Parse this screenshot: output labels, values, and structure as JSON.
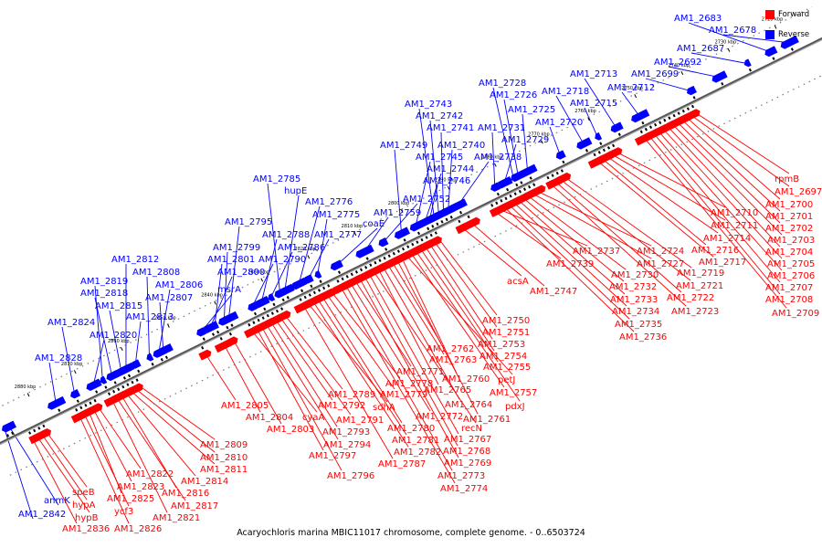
{
  "legend": {
    "forward": {
      "label": "Forward",
      "color": "#ff0000"
    },
    "reverse": {
      "label": "Reverse",
      "color": "#0000ff"
    }
  },
  "caption": "Acaryochloris marina MBIC11017 chromosome, complete genome. - 0..6503724",
  "axis": {
    "ticks": [
      "2880 kbp",
      "2870 kbp",
      "2860 kbp",
      "2850 kbp",
      "2840 kbp",
      "2830 kbp",
      "2820 kbp",
      "2810 kbp",
      "2800 kbp",
      "2790 kbp",
      "2780 kbp",
      "2770 kbp",
      "2760 kbp",
      "2750 kbp",
      "2740 kbp",
      "2730 kbp",
      "2720 kbp"
    ]
  },
  "reverse_genes": [
    {
      "label": "AM1_2842",
      "kb": 2887
    },
    {
      "label": "anmK",
      "kb": 2886
    },
    {
      "label": "AM1_2828",
      "kb": 2876
    },
    {
      "label": "AM1_2824",
      "kb": 2872
    },
    {
      "label": "AM1_2820",
      "kb": 2868
    },
    {
      "label": "AM1_2819",
      "kb": 2866
    },
    {
      "label": "AM1_2818",
      "kb": 2864
    },
    {
      "label": "AM1_2815",
      "kb": 2862
    },
    {
      "label": "AM1_2813",
      "kb": 2859
    },
    {
      "label": "AM1_2812",
      "kb": 2861
    },
    {
      "label": "AM1_2808",
      "kb": 2856
    },
    {
      "label": "AM1_2806",
      "kb": 2854
    },
    {
      "label": "AM1_2807",
      "kb": 2853
    },
    {
      "label": "msrA",
      "kb": 2845
    },
    {
      "label": "AM1_2800",
      "kb": 2843
    },
    {
      "label": "AM1_2801",
      "kb": 2842
    },
    {
      "label": "AM1_2799",
      "kb": 2840
    },
    {
      "label": "AM1_2795",
      "kb": 2839
    },
    {
      "label": "AM1_2790",
      "kb": 2834
    },
    {
      "label": "AM1_2788",
      "kb": 2832
    },
    {
      "label": "AM1_2786",
      "kb": 2830
    },
    {
      "label": "AM1_2785",
      "kb": 2828
    },
    {
      "label": "hupE",
      "kb": 2827
    },
    {
      "label": "AM1_2777",
      "kb": 2822
    },
    {
      "label": "AM1_2776",
      "kb": 2824
    },
    {
      "label": "AM1_2775",
      "kb": 2820
    },
    {
      "label": "coaE",
      "kb": 2816
    },
    {
      "label": "AM1_2759",
      "kb": 2810
    },
    {
      "label": "AM1_2752",
      "kb": 2806
    },
    {
      "label": "AM1_2749",
      "kb": 2802
    },
    {
      "label": "AM1_2746",
      "kb": 2796
    },
    {
      "label": "AM1_2745",
      "kb": 2799
    },
    {
      "label": "AM1_2744",
      "kb": 2797
    },
    {
      "label": "AM1_2743",
      "kb": 2795
    },
    {
      "label": "AM1_2742",
      "kb": 2794
    },
    {
      "label": "AM1_2741",
      "kb": 2793
    },
    {
      "label": "AM1_2740",
      "kb": 2792
    },
    {
      "label": "AM1_2738",
      "kb": 2790
    },
    {
      "label": "AM1_2731",
      "kb": 2782
    },
    {
      "label": "AM1_2729",
      "kb": 2780
    },
    {
      "label": "AM1_2728",
      "kb": 2778
    },
    {
      "label": "AM1_2726",
      "kb": 2777
    },
    {
      "label": "AM1_2725",
      "kb": 2775
    },
    {
      "label": "AM1_2720",
      "kb": 2768
    },
    {
      "label": "AM1_2718",
      "kb": 2763
    },
    {
      "label": "AM1_2715",
      "kb": 2760
    },
    {
      "label": "AM1_2713",
      "kb": 2756
    },
    {
      "label": "AM1_2712",
      "kb": 2751
    },
    {
      "label": "AM1_2699",
      "kb": 2740
    },
    {
      "label": "AM1_2692",
      "kb": 2734
    },
    {
      "label": "AM1_2687",
      "kb": 2728
    },
    {
      "label": "AM1_2683",
      "kb": 2723
    },
    {
      "label": "AM1_2678",
      "kb": 2719
    }
  ],
  "forward_genes": [
    {
      "label": "AM1_2836",
      "kb": 2883
    },
    {
      "label": "hypB",
      "kb": 2882
    },
    {
      "label": "hypA",
      "kb": 2881
    },
    {
      "label": "speB",
      "kb": 2880
    },
    {
      "label": "AM1_2826",
      "kb": 2873
    },
    {
      "label": "ycf3",
      "kb": 2872
    },
    {
      "label": "AM1_2825",
      "kb": 2871
    },
    {
      "label": "AM1_2823",
      "kb": 2870
    },
    {
      "label": "AM1_2822",
      "kb": 2869
    },
    {
      "label": "AM1_2821",
      "kb": 2866
    },
    {
      "label": "AM1_2817",
      "kb": 2865
    },
    {
      "label": "AM1_2816",
      "kb": 2864
    },
    {
      "label": "AM1_2814",
      "kb": 2863
    },
    {
      "label": "AM1_2811",
      "kb": 2862
    },
    {
      "label": "AM1_2810",
      "kb": 2861
    },
    {
      "label": "AM1_2809",
      "kb": 2860
    },
    {
      "label": "AM1_2805",
      "kb": 2846
    },
    {
      "label": "AM1_2804",
      "kb": 2842
    },
    {
      "label": "AM1_2803",
      "kb": 2840
    },
    {
      "label": "cyaA",
      "kb": 2836
    },
    {
      "label": "AM1_2797",
      "kb": 2835
    },
    {
      "label": "AM1_2796",
      "kb": 2834
    },
    {
      "label": "AM1_2794",
      "kb": 2833
    },
    {
      "label": "AM1_2793",
      "kb": 2832
    },
    {
      "label": "AM1_2792",
      "kb": 2831
    },
    {
      "label": "AM1_2791",
      "kb": 2830
    },
    {
      "label": "AM1_2789",
      "kb": 2829
    },
    {
      "label": "AM1_2787",
      "kb": 2825
    },
    {
      "label": "sdhA",
      "kb": 2824
    },
    {
      "label": "AM1_2782",
      "kb": 2823
    },
    {
      "label": "AM1_2781",
      "kb": 2822
    },
    {
      "label": "AM1_2780",
      "kb": 2821
    },
    {
      "label": "AM1_2779",
      "kb": 2820
    },
    {
      "label": "AM1_2778",
      "kb": 2819
    },
    {
      "label": "AM1_2774",
      "kb": 2817
    },
    {
      "label": "AM1_2773",
      "kb": 2816
    },
    {
      "label": "AM1_2772",
      "kb": 2815
    },
    {
      "label": "AM1_2771",
      "kb": 2814
    },
    {
      "label": "AM1_2769",
      "kb": 2813
    },
    {
      "label": "AM1_2768",
      "kb": 2812
    },
    {
      "label": "AM1_2767",
      "kb": 2811
    },
    {
      "label": "recN",
      "kb": 2810
    },
    {
      "label": "AM1_2765",
      "kb": 2809
    },
    {
      "label": "AM1_2764",
      "kb": 2808
    },
    {
      "label": "AM1_2763",
      "kb": 2807
    },
    {
      "label": "AM1_2762",
      "kb": 2806
    },
    {
      "label": "AM1_2761",
      "kb": 2805
    },
    {
      "label": "AM1_2760",
      "kb": 2804
    },
    {
      "label": "petJ",
      "kb": 2803
    },
    {
      "label": "AM1_2757",
      "kb": 2802
    },
    {
      "label": "pdxJ",
      "kb": 2801
    },
    {
      "label": "AM1_2755",
      "kb": 2800
    },
    {
      "label": "AM1_2754",
      "kb": 2799
    },
    {
      "label": "AM1_2753",
      "kb": 2798
    },
    {
      "label": "AM1_2751",
      "kb": 2797
    },
    {
      "label": "AM1_2750",
      "kb": 2796
    },
    {
      "label": "acsA",
      "kb": 2791
    },
    {
      "label": "AM1_2747",
      "kb": 2789
    },
    {
      "label": "AM1_2739",
      "kb": 2784
    },
    {
      "label": "AM1_2737",
      "kb": 2783
    },
    {
      "label": "AM1_2736",
      "kb": 2782
    },
    {
      "label": "AM1_2735",
      "kb": 2781
    },
    {
      "label": "AM1_2734",
      "kb": 2780
    },
    {
      "label": "AM1_2733",
      "kb": 2779
    },
    {
      "label": "AM1_2732",
      "kb": 2778
    },
    {
      "label": "AM1_2730",
      "kb": 2777
    },
    {
      "label": "AM1_2727",
      "kb": 2776
    },
    {
      "label": "AM1_2724",
      "kb": 2775
    },
    {
      "label": "AM1_2723",
      "kb": 2772
    },
    {
      "label": "AM1_2722",
      "kb": 2771
    },
    {
      "label": "AM1_2721",
      "kb": 2770
    },
    {
      "label": "AM1_2719",
      "kb": 2769
    },
    {
      "label": "AM1_2717",
      "kb": 2762
    },
    {
      "label": "AM1_2716",
      "kb": 2761
    },
    {
      "label": "AM1_2714",
      "kb": 2760
    },
    {
      "label": "AM1_2711",
      "kb": 2759
    },
    {
      "label": "AM1_2710",
      "kb": 2758
    },
    {
      "label": "AM1_2709",
      "kb": 2752
    },
    {
      "label": "AM1_2708",
      "kb": 2751
    },
    {
      "label": "AM1_2707",
      "kb": 2750
    },
    {
      "label": "AM1_2706",
      "kb": 2749
    },
    {
      "label": "AM1_2705",
      "kb": 2748
    },
    {
      "label": "AM1_2704",
      "kb": 2747
    },
    {
      "label": "AM1_2703",
      "kb": 2746
    },
    {
      "label": "AM1_2702",
      "kb": 2745
    },
    {
      "label": "AM1_2701",
      "kb": 2744
    },
    {
      "label": "AM1_2700",
      "kb": 2743
    },
    {
      "label": "AM1_2697",
      "kb": 2742
    },
    {
      "label": "rpmB",
      "kb": 2741
    }
  ]
}
